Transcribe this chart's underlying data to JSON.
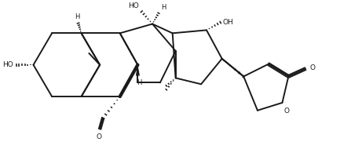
{
  "background": "#ffffff",
  "line_color": "#1a1a1a",
  "line_width": 1.4,
  "figsize": [
    4.33,
    1.81
  ],
  "dpi": 100,
  "xlim": [
    0.0,
    4.33
  ],
  "ylim": [
    0.0,
    1.81
  ]
}
